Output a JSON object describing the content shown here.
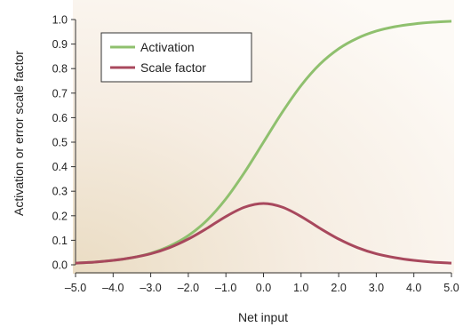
{
  "chart_data": {
    "type": "line",
    "xlabel": "Net input",
    "ylabel": "Activation or error scale factor",
    "xlim": [
      -5.0,
      5.0
    ],
    "ylim": [
      0.0,
      1.0
    ],
    "x_ticks": [
      "–5.0",
      "–4.0",
      "–3.0",
      "–2.0",
      "–1.0",
      "0.0",
      "1.0",
      "2.0",
      "3.0",
      "4.0",
      "5.0"
    ],
    "y_ticks": [
      "0.0",
      "0.1",
      "0.2",
      "0.3",
      "0.4",
      "0.5",
      "0.6",
      "0.7",
      "0.8",
      "0.9",
      "1.0"
    ],
    "legend_position": "top-left",
    "grid": false,
    "x": [
      -5,
      -4.5,
      -4,
      -3.5,
      -3,
      -2.5,
      -2,
      -1.5,
      -1,
      -0.5,
      0,
      0.5,
      1,
      1.5,
      2,
      2.5,
      3,
      3.5,
      4,
      4.5,
      5
    ],
    "series": [
      {
        "name": "Activation",
        "color": "#8fc06e",
        "values": [
          0.007,
          0.011,
          0.018,
          0.029,
          0.047,
          0.076,
          0.119,
          0.182,
          0.269,
          0.378,
          0.5,
          0.622,
          0.731,
          0.818,
          0.881,
          0.924,
          0.953,
          0.971,
          0.982,
          0.989,
          0.993
        ]
      },
      {
        "name": "Scale factor",
        "color": "#a8485d",
        "values": [
          0.007,
          0.011,
          0.018,
          0.029,
          0.045,
          0.07,
          0.105,
          0.149,
          0.197,
          0.235,
          0.25,
          0.235,
          0.197,
          0.149,
          0.105,
          0.07,
          0.045,
          0.029,
          0.018,
          0.011,
          0.007
        ]
      }
    ]
  }
}
